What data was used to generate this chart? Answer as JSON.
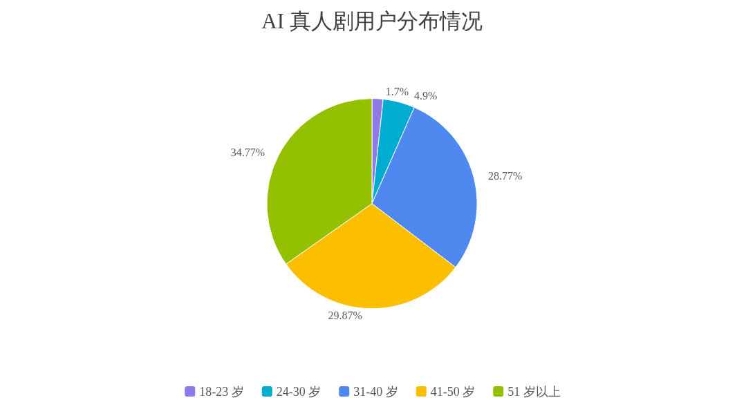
{
  "chart_data": {
    "type": "pie",
    "title": "AI 真人剧用户分布情况",
    "categories": [
      "18-23 岁",
      "24-30 岁",
      "31-40 岁",
      "41-50 岁",
      "51 岁以上"
    ],
    "values": [
      1.7,
      4.9,
      28.77,
      29.87,
      34.77
    ],
    "value_labels": [
      "1.7%",
      "4.9%",
      "28.77%",
      "29.87%",
      "34.77%"
    ],
    "colors": [
      "#8f7ae8",
      "#00acd0",
      "#4f89f0",
      "#fbbf00",
      "#93c000"
    ],
    "legend": "bottom"
  }
}
